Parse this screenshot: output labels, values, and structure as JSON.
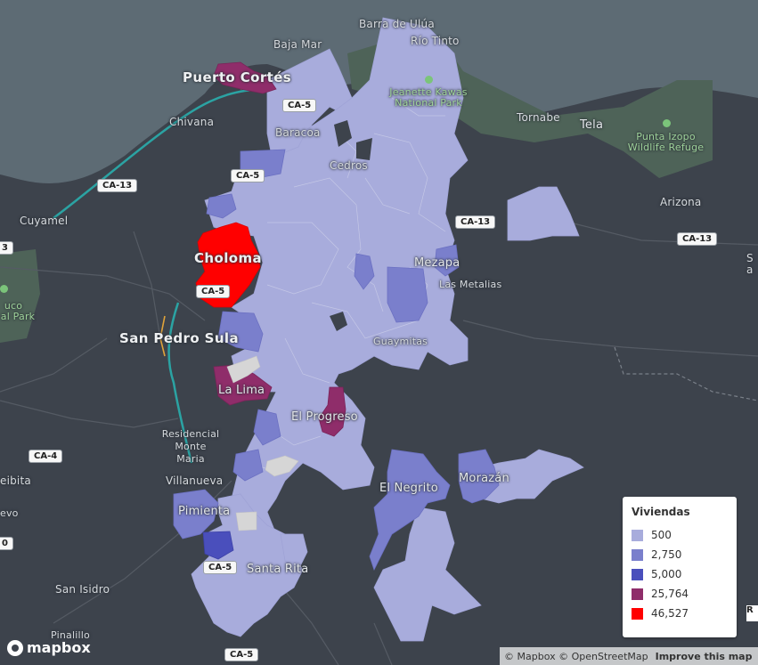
{
  "map": {
    "colors": {
      "sea": "#5d6b74",
      "land": "#3d434c",
      "park": "#4e6358",
      "road": "#5a6069",
      "highway": "#2ba3a3",
      "bin_500": "#a8acdc",
      "bin_2750": "#7a7fcc",
      "bin_5000": "#4a4fbc",
      "bin_25764": "#8f2d6a",
      "bin_46527": "#ff0000",
      "nodata": "#d6d6d6"
    },
    "places": {
      "barra_de_ulua": "Barra de Ulúa",
      "rio_tinto": "Río Tinto",
      "baja_mar": "Baja Mar",
      "puerto_cortes": "Puerto Cortés",
      "jeanette_kawas": "Jeanette Kawas National Park",
      "tornabe": "Tornabe",
      "tela": "Tela",
      "chivana": "Chivana",
      "baracoa": "Baracoa",
      "punta_izopo": "Punta Izopo Wildlife Refuge",
      "cedros": "Cedros",
      "cuyamel": "Cuyamel",
      "arizona": "Arizona",
      "choloma": "Choloma",
      "mezapa": "Mezapa",
      "las_metalias": "Las Metalias",
      "san_pedro_sula": "San Pedro Sula",
      "guaymitas": "Guaymitas",
      "la_lima": "La Lima",
      "el_progreso": "El Progreso",
      "residencial_monte_maria": "Residencial Monte Maria",
      "el_negrito": "El Negrito",
      "morazan": "Morazán",
      "villanueva": "Villanueva",
      "pimienta": "Pimienta",
      "santa_rita": "Santa Rita",
      "san_isidro": "San Isidro",
      "pinalillo": "Pinalillo",
      "eibita": "eibita",
      "evo": "evo",
      "uco": "uco",
      "al_park": "al Park",
      "edge_s": "S",
      "edge_a": "a"
    },
    "shields": {
      "ca5_a": "CA-5",
      "ca5_b": "CA-5",
      "ca5_c": "CA-5",
      "ca5_d": "CA-5",
      "ca5_e": "CA-5",
      "ca13_a": "CA-13",
      "ca13_b": "CA-13",
      "ca13_c": "CA-13",
      "ca4": "CA-4",
      "edge_3": "3",
      "edge_0": "0"
    }
  },
  "legend": {
    "title": "Viviendas",
    "items": [
      {
        "label": "500",
        "color": "#a8acdc"
      },
      {
        "label": "2,750",
        "color": "#7a7fcc"
      },
      {
        "label": "5,000",
        "color": "#4a4fbc"
      },
      {
        "label": "25,764",
        "color": "#8f2d6a"
      },
      {
        "label": "46,527",
        "color": "#ff0000"
      }
    ]
  },
  "branding": {
    "logo_text": "mapbox",
    "attribution": "© Mapbox © OpenStreetMap",
    "improve": "Improve this map",
    "edge_button": "R"
  }
}
